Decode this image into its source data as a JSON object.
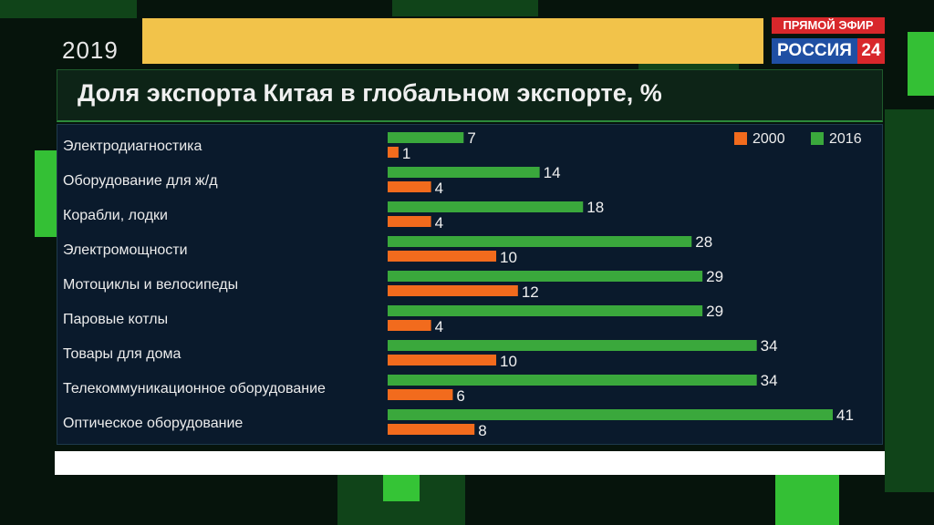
{
  "broadcast": {
    "year": "2019",
    "live_label": "ПРЯМОЙ ЭФИР",
    "channel_name": "РОССИЯ",
    "channel_number": "24"
  },
  "colors": {
    "series_2000": "#f26b1d",
    "series_2016": "#3aa83c",
    "accent_yellow": "#f2c34a"
  },
  "chart_data": {
    "type": "bar",
    "orientation": "horizontal",
    "title": "Доля экспорта Китая в глобальном экспорте, %",
    "categories": [
      "Электродиагностика",
      "Оборудование для ж/д",
      "Корабли, лодки",
      "Электромощности",
      "Мотоциклы и велосипеды",
      "Паровые котлы",
      "Товары для дома",
      "Телекоммуникационное оборудование",
      "Оптическое оборудование"
    ],
    "series": [
      {
        "name": "2016",
        "values": [
          7,
          14,
          18,
          28,
          29,
          29,
          34,
          34,
          41
        ]
      },
      {
        "name": "2000",
        "values": [
          1,
          4,
          4,
          10,
          12,
          4,
          10,
          6,
          8
        ]
      }
    ],
    "legend": [
      "2000",
      "2016"
    ],
    "legend_position": "top-right",
    "xlim": [
      0,
      41
    ],
    "grid": false
  }
}
